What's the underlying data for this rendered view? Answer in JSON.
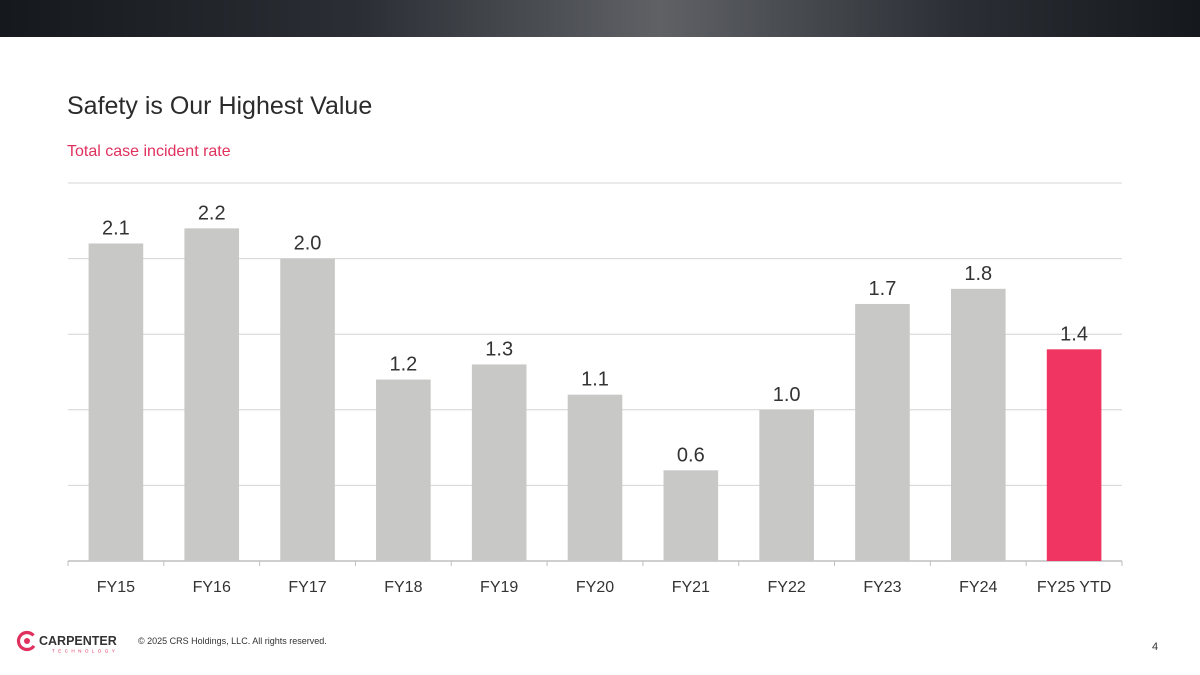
{
  "slide": {
    "title": "Safety is Our Highest Value",
    "subtitle": "Total case incident rate",
    "copyright": "© 2025 CRS Holdings, LLC. All rights reserved.",
    "page_number": "4",
    "logo": {
      "name": "CARPENTER",
      "tagline": "TECHNOLOGY",
      "mark": "logo-c-icon",
      "brand_color": "#e0315e"
    }
  },
  "colors": {
    "default_bar": "#c8c8c7",
    "highlight_bar": "#f03562",
    "grid": "#d4d4d4",
    "axis": "#bfbfbf",
    "label": "#333333"
  },
  "chart_data": {
    "type": "bar",
    "categories": [
      "FY15",
      "FY16",
      "FY17",
      "FY18",
      "FY19",
      "FY20",
      "FY21",
      "FY22",
      "FY23",
      "FY24",
      "FY25 YTD"
    ],
    "values": [
      2.1,
      2.2,
      2.0,
      1.2,
      1.3,
      1.1,
      0.6,
      1.0,
      1.7,
      1.8,
      1.4
    ],
    "data_labels": [
      "2.1",
      "2.2",
      "2.0",
      "1.2",
      "1.3",
      "1.1",
      "0.6",
      "1.0",
      "1.7",
      "1.8",
      "1.4"
    ],
    "highlight_index": 10,
    "ylim": [
      0,
      2.5
    ],
    "grid_step": 0.5,
    "grid": true,
    "legend": "none",
    "y_tick_labels": false
  }
}
